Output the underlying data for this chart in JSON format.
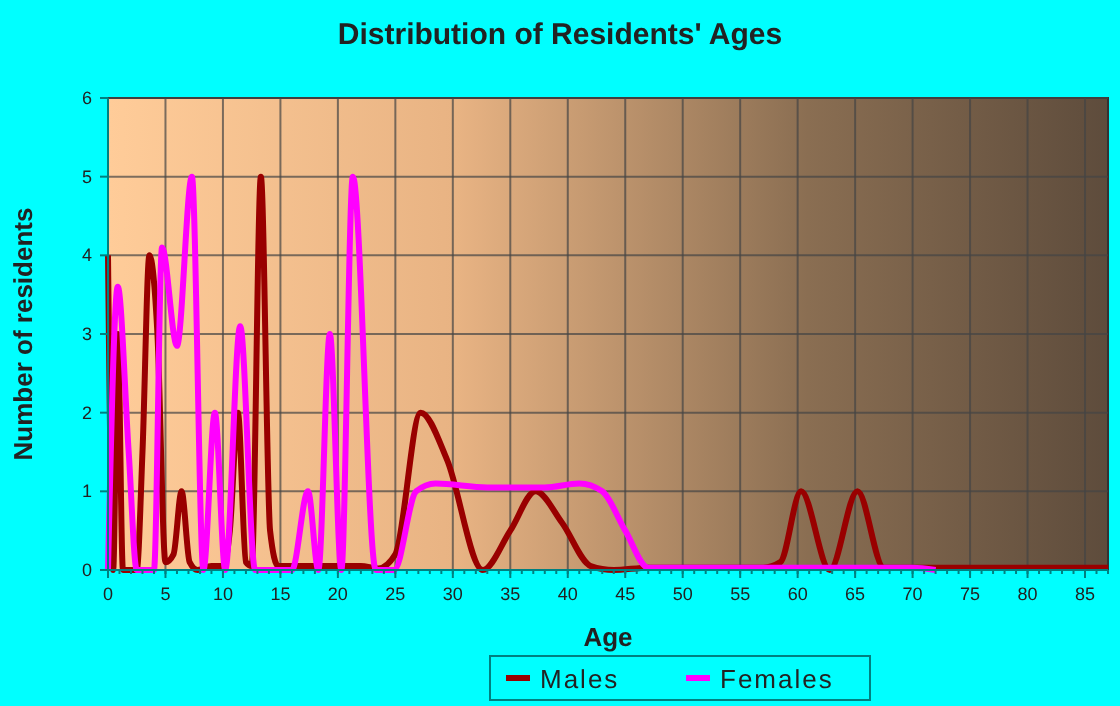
{
  "chart_data": {
    "type": "line",
    "title": "Distribution of Residents' Ages",
    "xlabel": "Age",
    "ylabel": "Number of residents",
    "xlim": [
      0,
      87
    ],
    "xticks": [
      0,
      5,
      10,
      15,
      20,
      25,
      30,
      35,
      40,
      45,
      50,
      55,
      60,
      65,
      70,
      75,
      80,
      85
    ],
    "ylim": [
      0,
      6
    ],
    "yticks": [
      0,
      1,
      2,
      3,
      4,
      5,
      6
    ],
    "grid": true,
    "legend": "bottom",
    "line_style": "solid",
    "marker": "none",
    "series": [
      {
        "name": "Males",
        "color": "#990000",
        "x": [
          0,
          0.45,
          0.85,
          1.3,
          1.8,
          2.5,
          3,
          3.6,
          4.3,
          5,
          5.7,
          6.4,
          7.1,
          7.8,
          9,
          10,
          10.6,
          11.3,
          12,
          12.5,
          13.3,
          14.1,
          14.8,
          16,
          18,
          20,
          22,
          23.5,
          25,
          27.2,
          29.5,
          32.6,
          35,
          37.2,
          39.5,
          42,
          44,
          47,
          50,
          55,
          57,
          58.5,
          60.3,
          62.8,
          65.2,
          67.5,
          70,
          75,
          80,
          87
        ],
        "values": [
          4,
          0,
          3,
          0,
          0,
          0,
          1.5,
          4,
          3,
          0.1,
          0.2,
          1,
          0.1,
          0,
          0.05,
          0.05,
          0.5,
          2,
          0.1,
          0.05,
          5,
          0.5,
          0.05,
          0.05,
          0.05,
          0.05,
          0.05,
          0.02,
          0.2,
          2,
          1.4,
          0,
          0.5,
          1,
          0.6,
          0.05,
          0,
          0.03,
          0.03,
          0.03,
          0.03,
          0.1,
          1,
          0,
          1,
          0.03,
          0.03,
          0.03,
          0.03,
          0.03
        ]
      },
      {
        "name": "Females",
        "color": "#ff00ff",
        "x": [
          0,
          0.85,
          1.8,
          2.5,
          4,
          4.7,
          6,
          7.3,
          8.3,
          9.3,
          10.2,
          11.5,
          12.8,
          16,
          17.4,
          18.3,
          19.3,
          20.3,
          21.3,
          23.3,
          24.9,
          26.8,
          28.5,
          33,
          38,
          41,
          43,
          45,
          47,
          55,
          70,
          72
        ],
        "values": [
          0,
          3.6,
          1.5,
          0,
          0,
          4.1,
          2.85,
          5,
          0,
          2,
          0,
          3.1,
          0,
          0,
          1,
          0,
          3,
          0,
          5,
          0,
          0,
          1,
          1.1,
          1.05,
          1.05,
          1.1,
          1,
          0.5,
          0.03,
          0.03,
          0.03,
          0
        ]
      }
    ]
  }
}
